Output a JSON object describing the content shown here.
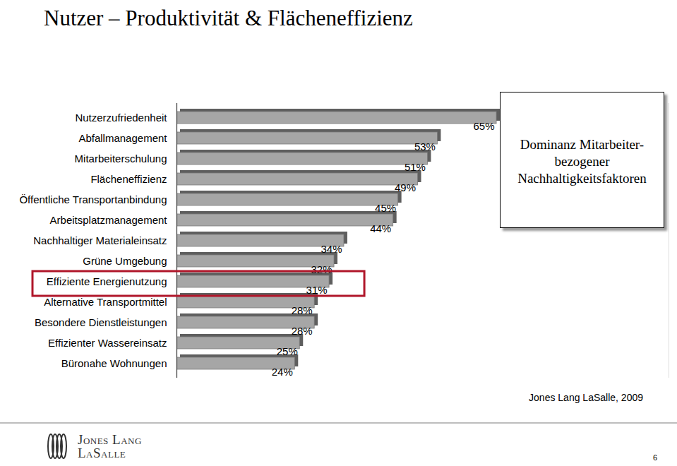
{
  "chart_data": {
    "type": "bar",
    "title": "Nutzer – Produktivität & Flächeneffizienz",
    "orientation": "horizontal",
    "categories": [
      "Nutzerzufriedenheit",
      "Abfallmanagement",
      "Mitarbeiterschulung",
      "Flächeneffizienz",
      "Öffentliche Transportanbindung",
      "Arbeitsplatzmanagement",
      "Nachhaltiger Materialeinsatz",
      "Grüne Umgebung",
      "Effiziente Energienutzung",
      "Alternative Transportmittel",
      "Besondere Dienstleistungen",
      "Effizienter Wassereinsatz",
      "Büronahe Wohnungen"
    ],
    "values": [
      65,
      53,
      51,
      49,
      45,
      44,
      34,
      32,
      31,
      28,
      28,
      25,
      24
    ],
    "value_labels": [
      "65%",
      "53%",
      "51%",
      "49%",
      "45%",
      "44%",
      "34%",
      "32%",
      "31%",
      "28%",
      "28%",
      "25%",
      "24%"
    ],
    "data_labels": true,
    "color": "#a6a6a6",
    "xlim": [
      0,
      100
    ],
    "xticks": [],
    "tick_labels": "y",
    "grid": false,
    "annotation": "Dominanz Mitarbeiter-bezogener Nachhaltigkeitsfaktoren",
    "source": "Jones Lang LaSalle, 2009"
  },
  "footer": {
    "logo": [
      "Jones Lang",
      "LaSalle"
    ],
    "page_number": "6"
  }
}
